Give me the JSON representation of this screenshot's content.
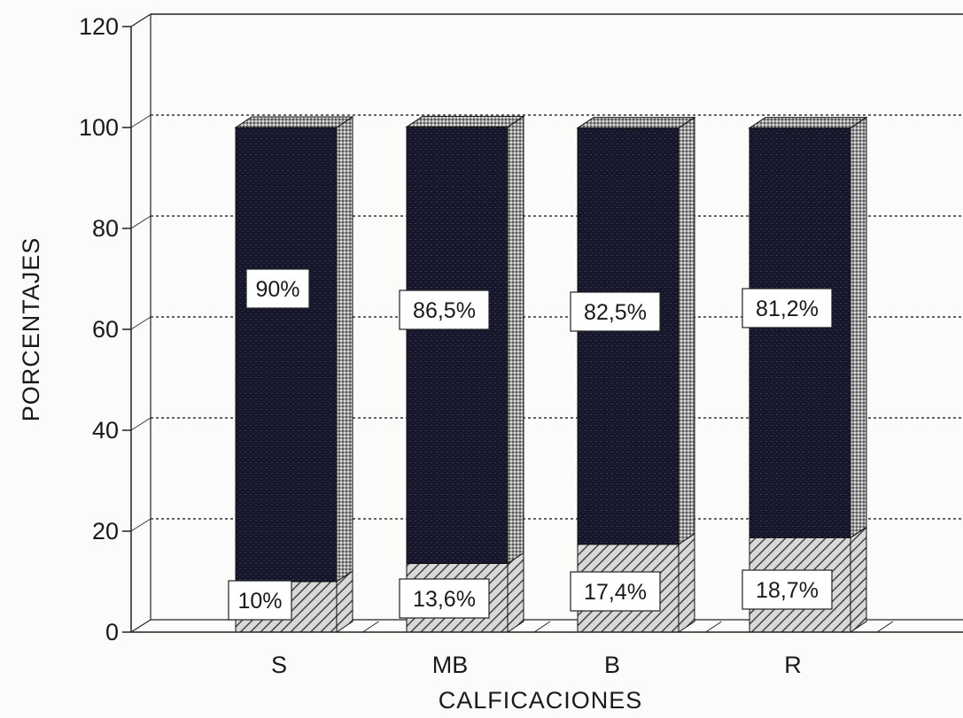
{
  "chart_data": {
    "type": "bar",
    "stacked": true,
    "style": "3d",
    "categories": [
      "S",
      "MB",
      "B",
      "R"
    ],
    "series": [
      {
        "values": [
          10,
          13.6,
          17.4,
          18.7
        ],
        "labels": [
          "10%",
          "13,6%",
          "17,4%",
          "18,7%"
        ],
        "color": "#8a8a8a",
        "pattern": "diagonal-hatch"
      },
      {
        "values": [
          90,
          86.5,
          82.5,
          81.2
        ],
        "labels": [
          "90%",
          "86,5%",
          "82,5%",
          "81,2%"
        ],
        "color": "#16162a",
        "pattern": "dark-fill"
      }
    ],
    "xlabel": "CALFICACIONES",
    "ylabel": "PORCENTAJES",
    "ylim": [
      0,
      120
    ],
    "yticks": [
      0,
      20,
      40,
      60,
      80,
      100,
      120
    ],
    "grid": "horizontal-dotted",
    "legend": "none"
  }
}
